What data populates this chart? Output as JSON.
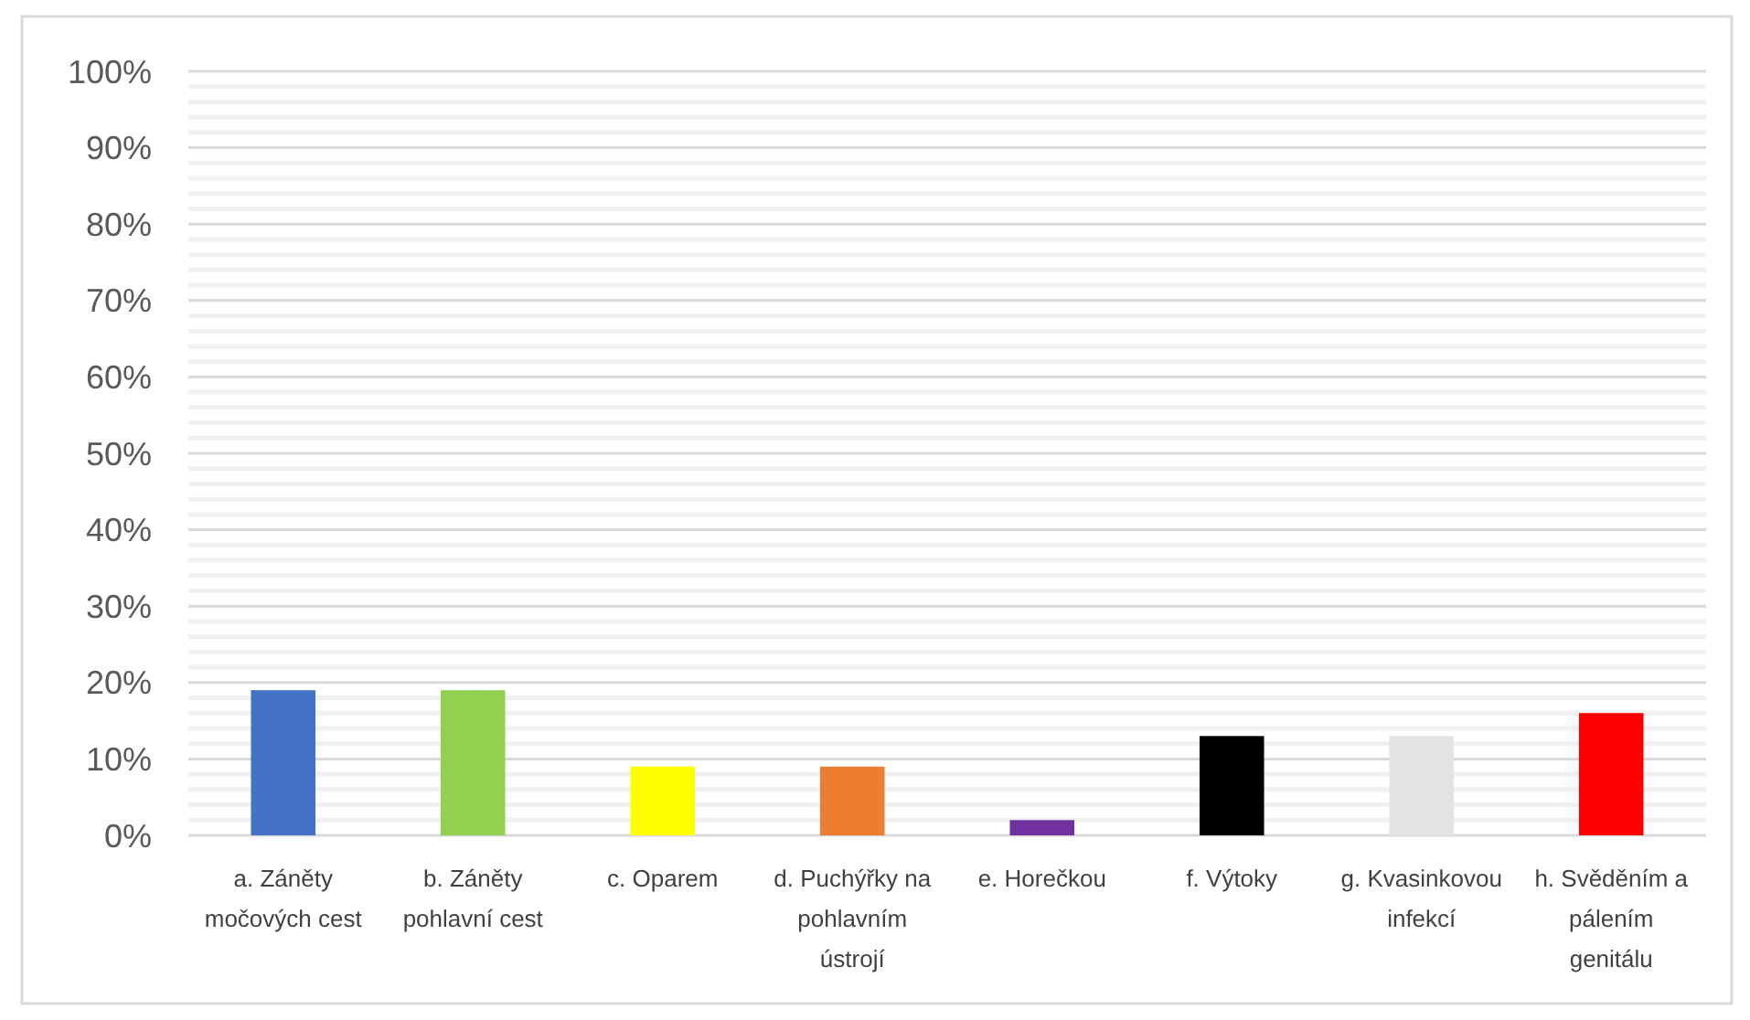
{
  "chart_data": {
    "type": "bar",
    "categories": [
      "a. Záněty močových cest",
      "b. Záněty pohlavní cest",
      "c. Oparem",
      "d. Puchýřky na pohlavním ústrojí",
      "e. Horečkou",
      "f. Výtoky",
      "g. Kvasinkovou infekcí",
      "h. Svěděním a pálením genitálu"
    ],
    "values": [
      19,
      19,
      9,
      9,
      2,
      13,
      13,
      16
    ],
    "colors": [
      "#4472c4",
      "#92d050",
      "#ffff00",
      "#ed7d31",
      "#7030a0",
      "#000000",
      "#e3e3e3",
      "#ff0000"
    ],
    "ylim": [
      0,
      100
    ],
    "yticks": [
      {
        "value": 0,
        "label": "0%"
      },
      {
        "value": 10,
        "label": "10%"
      },
      {
        "value": 20,
        "label": "20%"
      },
      {
        "value": 30,
        "label": "30%"
      },
      {
        "value": 40,
        "label": "40%"
      },
      {
        "value": 50,
        "label": "50%"
      },
      {
        "value": 60,
        "label": "60%"
      },
      {
        "value": 70,
        "label": "70%"
      },
      {
        "value": 80,
        "label": "80%"
      },
      {
        "value": 90,
        "label": "90%"
      },
      {
        "value": 100,
        "label": "100%"
      }
    ],
    "grid": "y"
  }
}
